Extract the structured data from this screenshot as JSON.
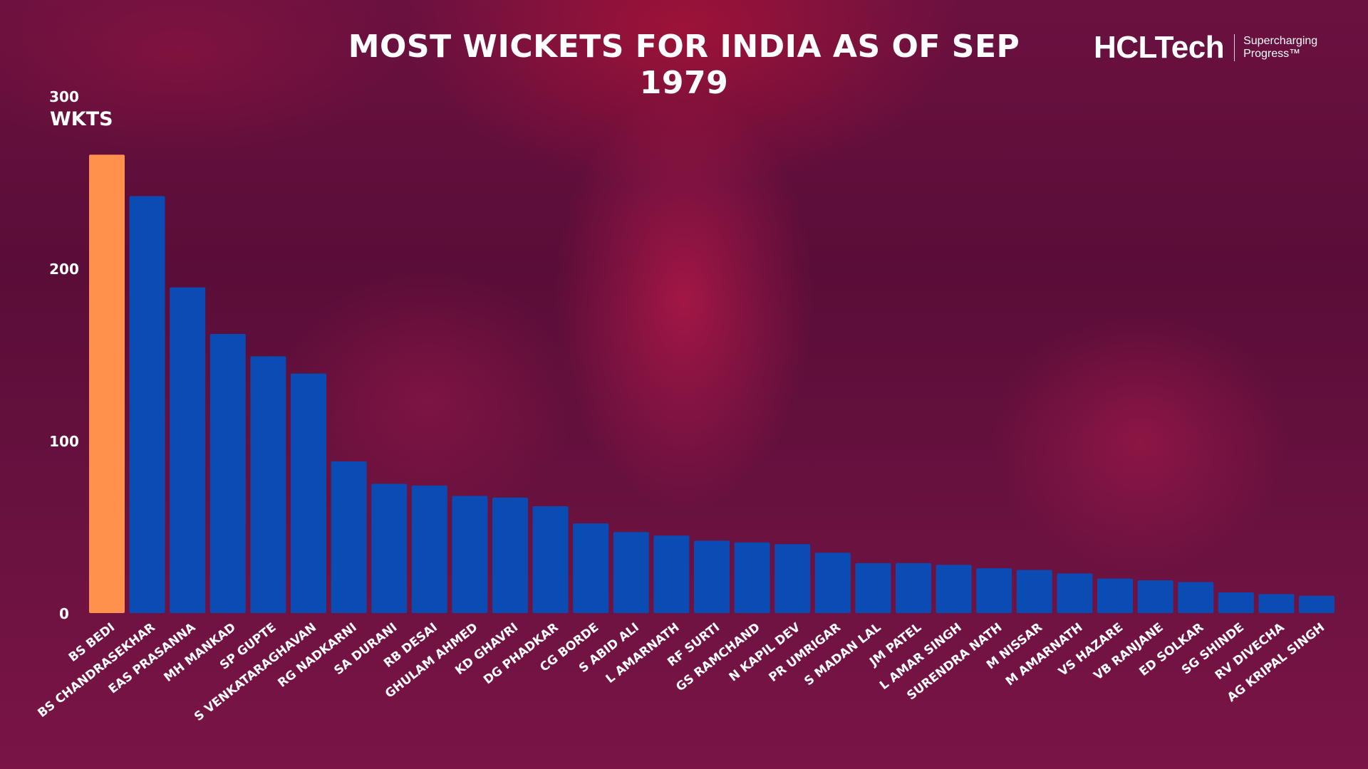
{
  "brand": {
    "name": "HCLTech",
    "tagline_line1": "Supercharging",
    "tagline_line2": "Progress™"
  },
  "chart_data": {
    "type": "bar",
    "title": "MOST WICKETS FOR INDIA AS OF SEP 1979",
    "ylabel": "WKTS",
    "ylim": [
      0,
      300
    ],
    "yticks": [
      0,
      100,
      200,
      300
    ],
    "grid": false,
    "categories": [
      "BS BEDI",
      "BS CHANDRASEKHAR",
      "EAS PRASANNA",
      "MH MANKAD",
      "SP GUPTE",
      "S VENKATARAGHAVAN",
      "RG NADKARNI",
      "SA DURANI",
      "RB DESAI",
      "GHULAM AHMED",
      "KD GHAVRI",
      "DG PHADKAR",
      "CG BORDE",
      "S ABID ALI",
      "L AMARNATH",
      "RF SURTI",
      "GS RAMCHAND",
      "N KAPIL DEV",
      "PR UMRIGAR",
      "S MADAN LAL",
      "JM PATEL",
      "L AMAR SINGH",
      "SURENDRA NATH",
      "M NISSAR",
      "M AMARNATH",
      "VS HAZARE",
      "VB RANJANE",
      "ED SOLKAR",
      "SG SHINDE",
      "RV DIVECHA",
      "AG KRIPAL SINGH"
    ],
    "values": [
      266,
      242,
      189,
      162,
      149,
      139,
      88,
      75,
      74,
      68,
      67,
      62,
      52,
      47,
      45,
      42,
      41,
      40,
      35,
      29,
      29,
      28,
      26,
      25,
      23,
      20,
      19,
      18,
      12,
      11,
      10
    ],
    "colors": {
      "highlight": "#FF914D",
      "default": "#0A4BB4"
    },
    "highlight_index": 0
  }
}
